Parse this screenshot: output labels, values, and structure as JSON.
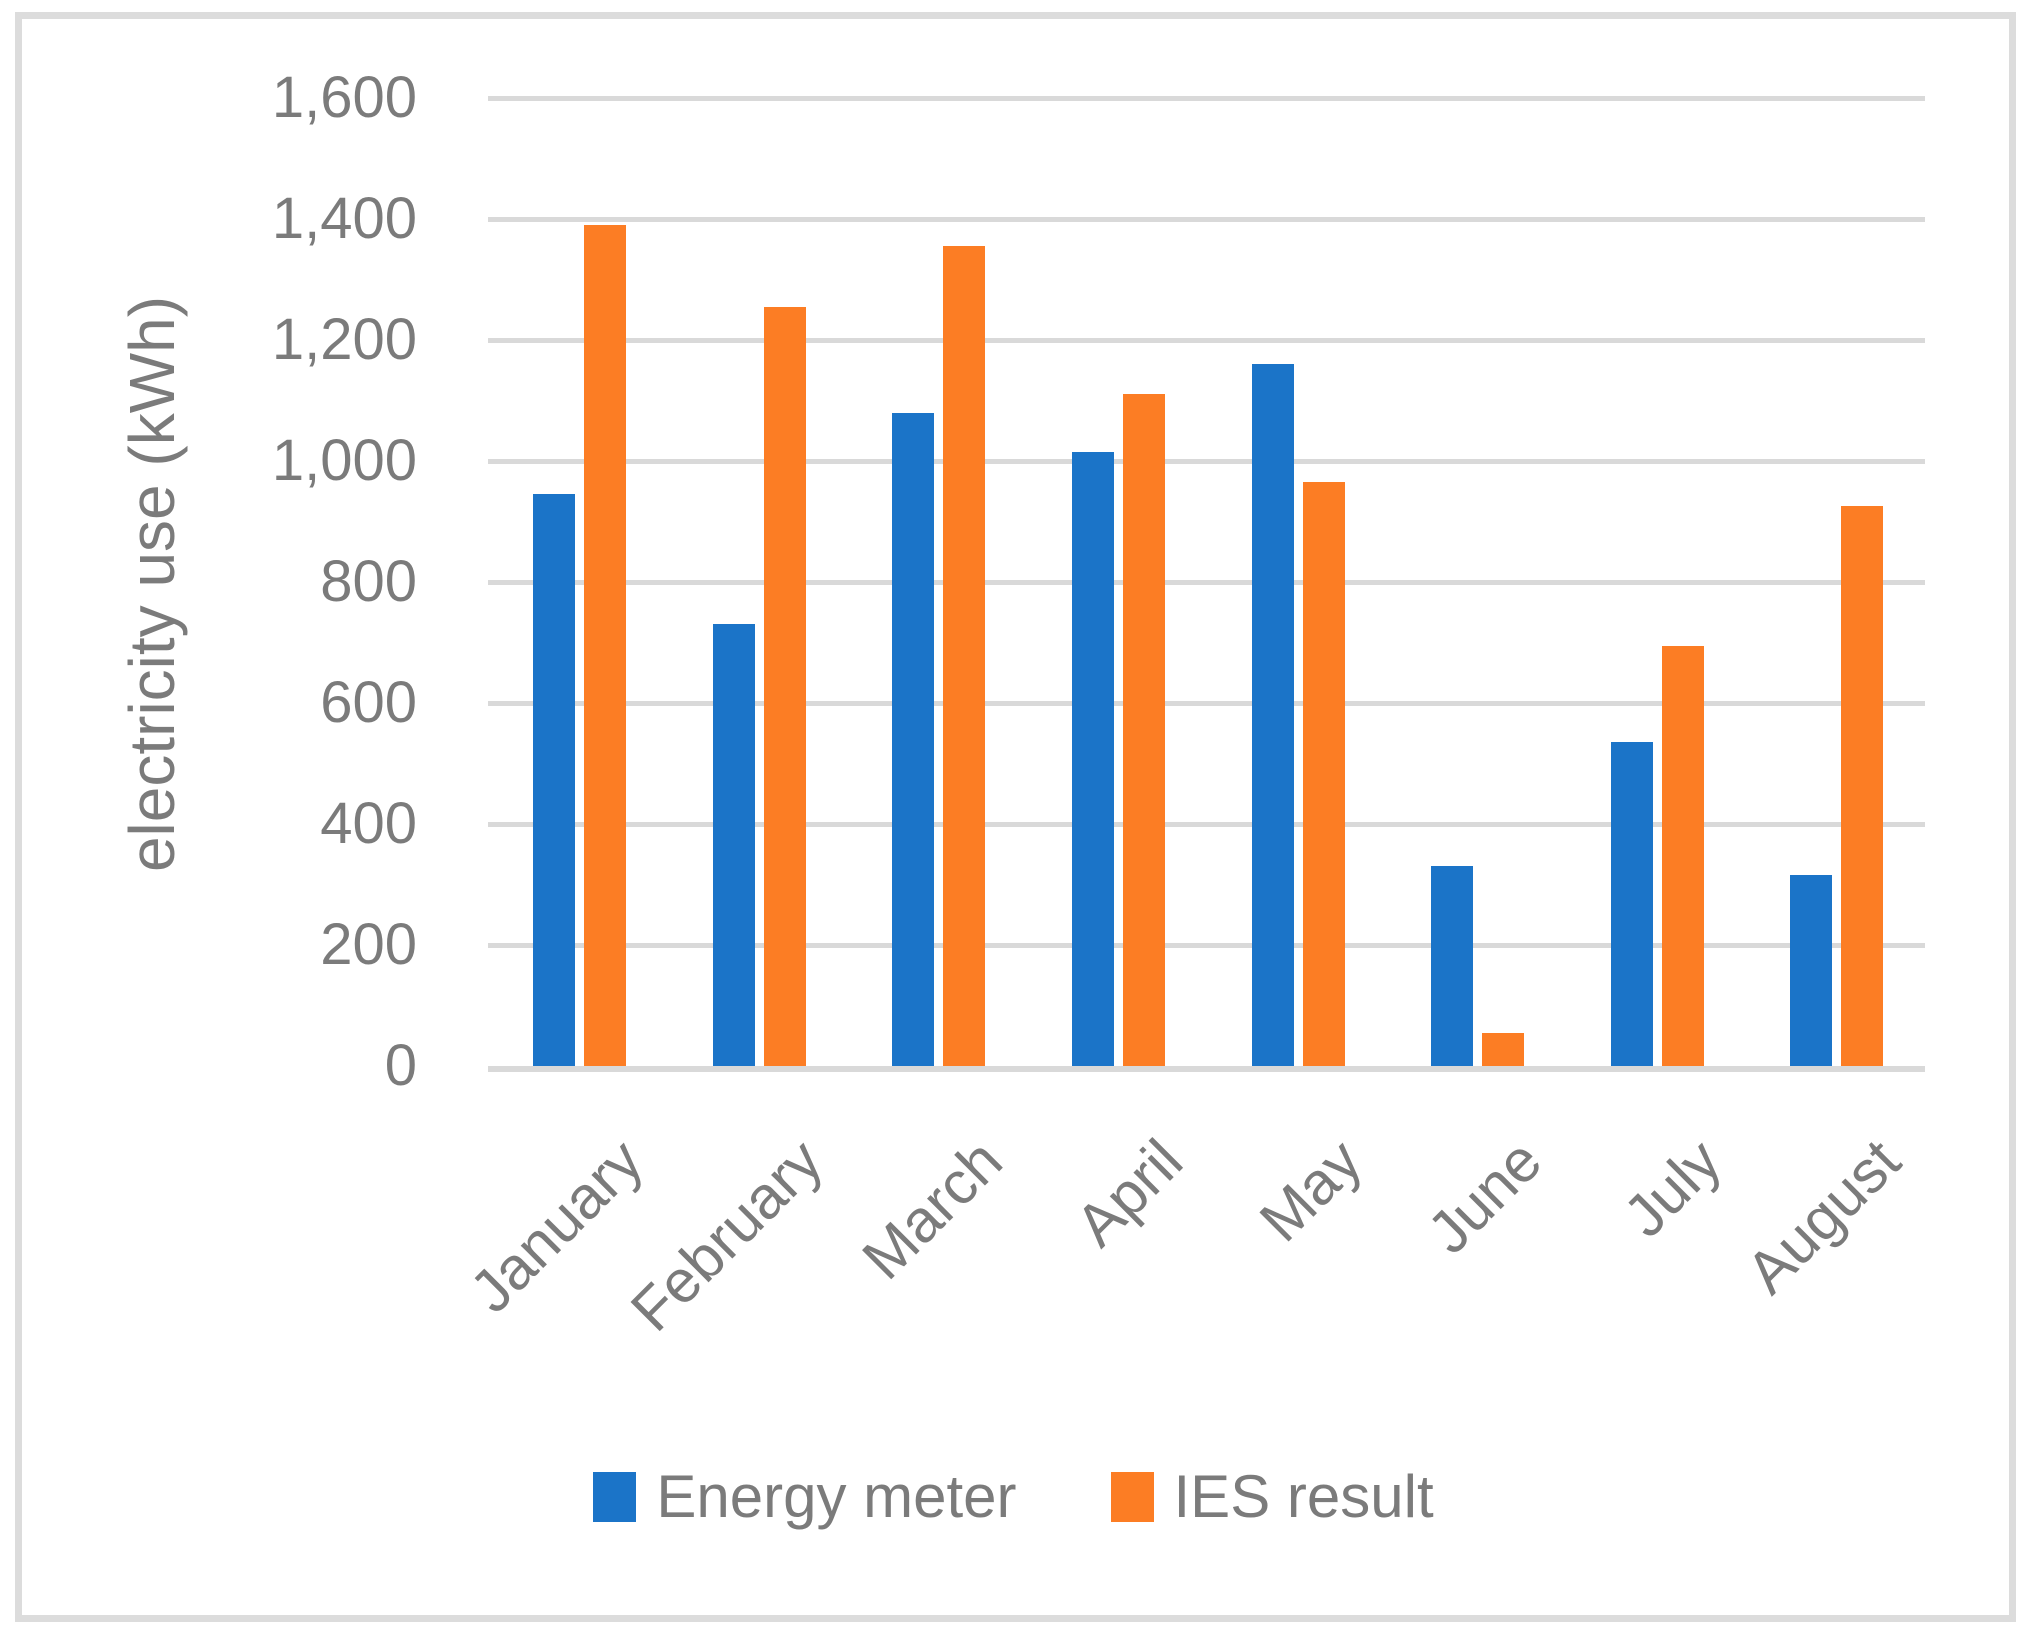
{
  "chart_data": {
    "type": "bar",
    "title": "",
    "xlabel": "",
    "ylabel": "electricity use (kWh)",
    "categories": [
      "January",
      "February",
      "March",
      "April",
      "May",
      "June",
      "July",
      "August"
    ],
    "series": [
      {
        "name": "Energy meter",
        "color": "#1B74C8",
        "values": [
          945,
          730,
          1080,
          1015,
          1160,
          330,
          535,
          315
        ]
      },
      {
        "name": "IES result",
        "color": "#FC7D24",
        "values": [
          1390,
          1255,
          1355,
          1110,
          965,
          55,
          695,
          925
        ]
      }
    ],
    "ylim": [
      0,
      1600
    ],
    "y_tick_values": [
      0,
      200,
      400,
      600,
      800,
      1000,
      1200,
      1400,
      1600
    ],
    "y_tick_labels": [
      "0",
      "200",
      "400",
      "600",
      "800",
      "1,000",
      "1,200",
      "1,400",
      "1,600"
    ],
    "grid": true,
    "legend_position": "bottom",
    "x_label_rotation_deg": 45,
    "colors": {
      "gridline": "#D9D9D9",
      "axis_text": "#7B7B7B",
      "frame_border": "#DCDCDC",
      "background": "#FFFFFF"
    }
  }
}
